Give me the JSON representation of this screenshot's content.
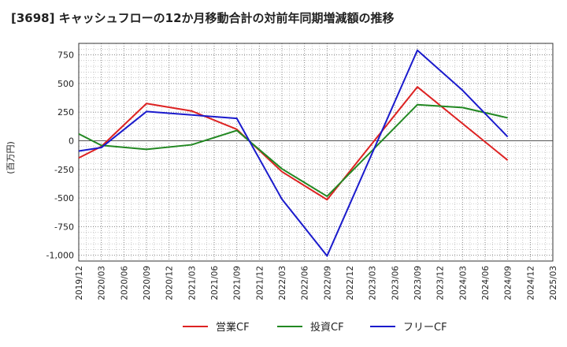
{
  "chart_data": {
    "type": "line",
    "title": "[3698]  キャッシュフローの12か月移動合計の対前年同期増減額の推移",
    "ylabel": "(百万円)",
    "xlabel": "",
    "ylim": [
      -1050,
      850
    ],
    "yticks": [
      750,
      500,
      250,
      0,
      -250,
      -500,
      -750,
      -1000
    ],
    "ytick_labels": [
      "750",
      "500",
      "250",
      "0",
      "-250",
      "-500",
      "-750",
      "-1,000"
    ],
    "categories": [
      "2019/12",
      "2020/03",
      "2020/06",
      "2020/09",
      "2020/12",
      "2021/03",
      "2021/06",
      "2021/09",
      "2021/12",
      "2022/03",
      "2022/06",
      "2022/09",
      "2022/12",
      "2023/03",
      "2023/06",
      "2023/09",
      "2023/12",
      "2024/03",
      "2024/06",
      "2024/09",
      "2024/12",
      "2025/03"
    ],
    "grid": true,
    "legend_position": "bottom",
    "series": [
      {
        "name": "営業CF",
        "color": "#dd2222",
        "values": [
          -150,
          -50,
          null,
          325,
          null,
          260,
          null,
          100,
          null,
          -270,
          null,
          -515,
          null,
          null,
          null,
          470,
          null,
          null,
          null,
          -170,
          null,
          null
        ]
      },
      {
        "name": "投資CF",
        "color": "#228822",
        "values": [
          60,
          -40,
          null,
          -75,
          null,
          -35,
          null,
          90,
          null,
          -245,
          null,
          -485,
          null,
          null,
          null,
          315,
          null,
          290,
          null,
          200,
          null,
          null
        ]
      },
      {
        "name": "フリーCF",
        "color": "#1a1acc",
        "values": [
          -90,
          -60,
          null,
          255,
          null,
          null,
          null,
          195,
          null,
          -510,
          null,
          -1005,
          null,
          null,
          null,
          790,
          null,
          440,
          null,
          35,
          null,
          null
        ]
      }
    ]
  }
}
